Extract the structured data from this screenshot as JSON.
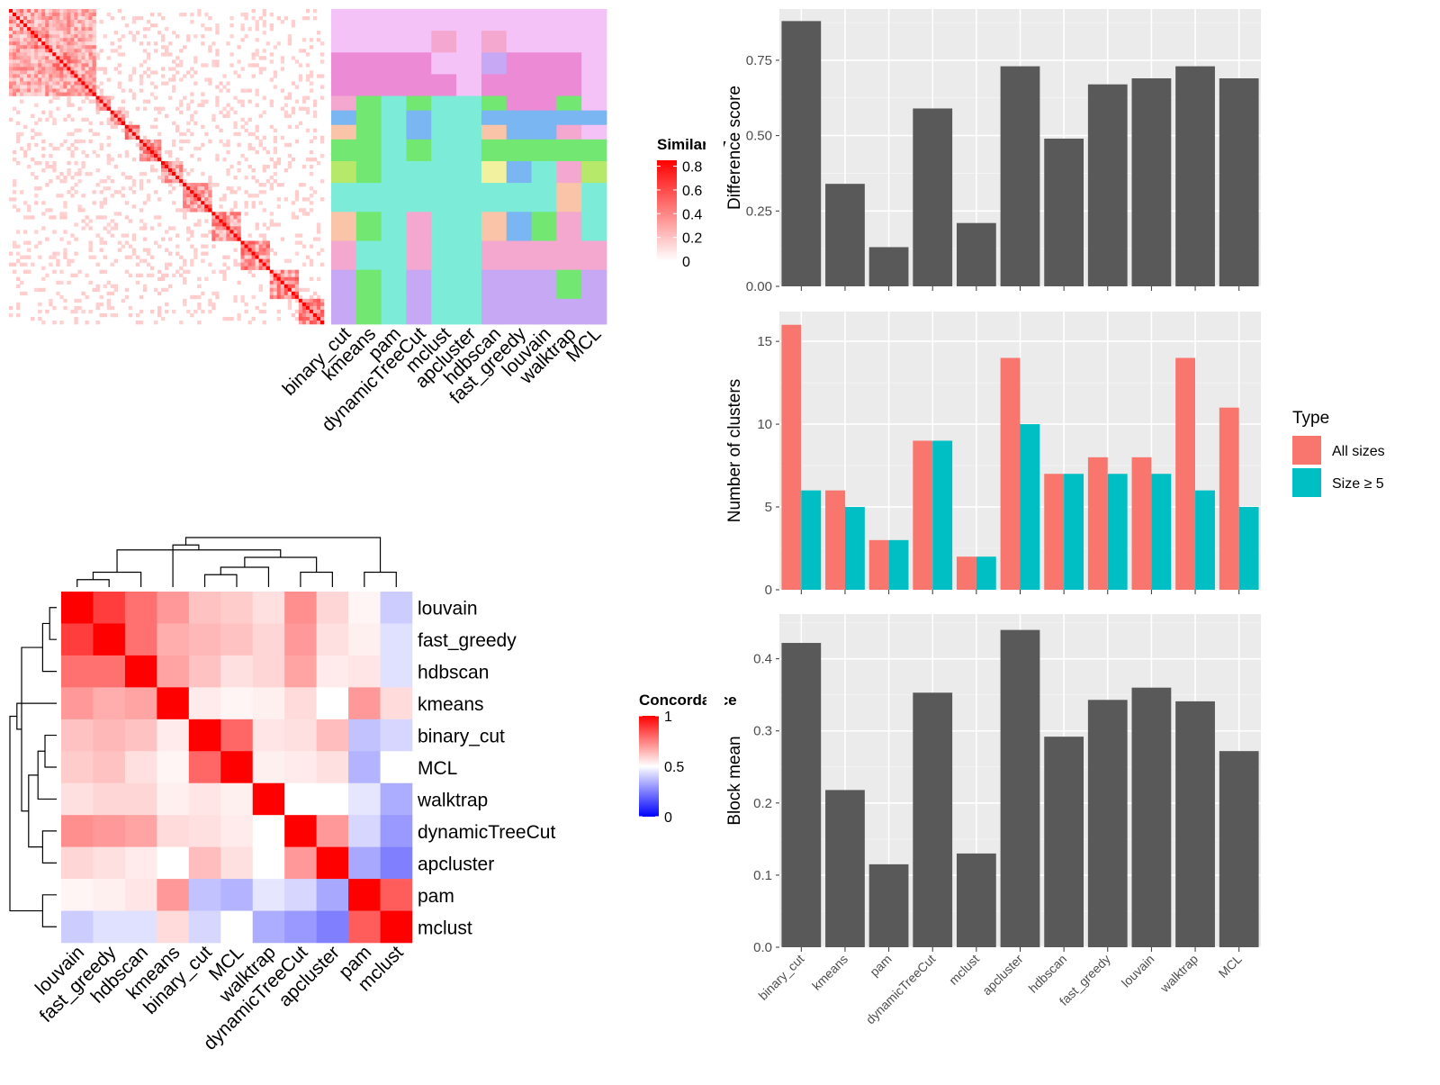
{
  "chart_data": [
    {
      "type": "heatmap",
      "panel": "similarity-heatmap",
      "legend_title": "Similarity",
      "legend_ticks": [
        "0.8",
        "0.6",
        "0.4",
        "0.2",
        "0"
      ],
      "legend_range": [
        0,
        0.85
      ],
      "methods": [
        "binary_cut",
        "kmeans",
        "pam",
        "dynamicTreeCut",
        "mclust",
        "apcluster",
        "hdbscan",
        "fast_greedy",
        "louvain",
        "walktrap",
        "MCL"
      ],
      "n_terms": 87,
      "blocks": [
        [
          0,
          6
        ],
        [
          6,
          12
        ],
        [
          12,
          18
        ],
        [
          18,
          24
        ],
        [
          24,
          28
        ],
        [
          28,
          32
        ],
        [
          32,
          36
        ],
        [
          36,
          42
        ],
        [
          42,
          48
        ],
        [
          48,
          56
        ],
        [
          56,
          64
        ],
        [
          64,
          72
        ],
        [
          72,
          80
        ],
        [
          80,
          87
        ]
      ],
      "seg_colors": [
        "#f4c2f7",
        "#ec8ad6",
        "#72e872",
        "#79b6f2",
        "#7cecd8",
        "#f4a8cf",
        "#c7a8f5",
        "#fac4a8",
        "#f1f19f",
        "#b6e86a"
      ],
      "assignments": [
        [
          0,
          0,
          0,
          0,
          0,
          0,
          0,
          0,
          0,
          0,
          0
        ],
        [
          0,
          0,
          0,
          0,
          5,
          0,
          5,
          0,
          0,
          0,
          0
        ],
        [
          1,
          1,
          1,
          1,
          0,
          0,
          6,
          1,
          1,
          1,
          0
        ],
        [
          1,
          1,
          1,
          1,
          1,
          0,
          1,
          1,
          1,
          1,
          0
        ],
        [
          5,
          2,
          4,
          2,
          4,
          4,
          2,
          1,
          1,
          2,
          0
        ],
        [
          3,
          2,
          4,
          3,
          4,
          4,
          3,
          3,
          3,
          3,
          3
        ],
        [
          7,
          2,
          4,
          3,
          4,
          4,
          7,
          3,
          3,
          5,
          0
        ],
        [
          2,
          2,
          4,
          2,
          4,
          4,
          2,
          2,
          2,
          2,
          2
        ],
        [
          9,
          2,
          4,
          4,
          4,
          4,
          8,
          3,
          4,
          5,
          9
        ],
        [
          4,
          4,
          4,
          4,
          4,
          4,
          4,
          4,
          4,
          7,
          4
        ],
        [
          7,
          2,
          4,
          5,
          4,
          4,
          7,
          3,
          2,
          5,
          4
        ],
        [
          5,
          4,
          4,
          5,
          4,
          4,
          5,
          5,
          5,
          5,
          5
        ],
        [
          6,
          2,
          4,
          6,
          4,
          4,
          6,
          6,
          6,
          2,
          6
        ],
        [
          6,
          2,
          4,
          6,
          4,
          4,
          6,
          6,
          6,
          6,
          6
        ]
      ]
    },
    {
      "type": "heatmap",
      "panel": "concordance-heatmap",
      "legend_title": "Concordance",
      "legend_ticks": [
        "1",
        "0.5",
        "0"
      ],
      "legend_range": [
        0,
        1
      ],
      "labels": [
        "louvain",
        "fast_greedy",
        "hdbscan",
        "kmeans",
        "binary_cut",
        "MCL",
        "walktrap",
        "dynamicTreeCut",
        "apcluster",
        "pam",
        "mclust"
      ],
      "values": [
        [
          1.0,
          0.88,
          0.78,
          0.7,
          0.62,
          0.6,
          0.56,
          0.72,
          0.58,
          0.52,
          0.4
        ],
        [
          0.88,
          1.0,
          0.78,
          0.66,
          0.64,
          0.62,
          0.58,
          0.7,
          0.56,
          0.53,
          0.44
        ],
        [
          0.78,
          0.78,
          1.0,
          0.68,
          0.62,
          0.56,
          0.58,
          0.68,
          0.54,
          0.55,
          0.44
        ],
        [
          0.7,
          0.66,
          0.68,
          1.0,
          0.54,
          0.52,
          0.53,
          0.57,
          0.5,
          0.7,
          0.57
        ],
        [
          0.62,
          0.64,
          0.62,
          0.54,
          1.0,
          0.8,
          0.55,
          0.56,
          0.63,
          0.38,
          0.42
        ],
        [
          0.6,
          0.62,
          0.56,
          0.52,
          0.8,
          1.0,
          0.53,
          0.54,
          0.56,
          0.35,
          0.5
        ],
        [
          0.56,
          0.58,
          0.58,
          0.53,
          0.55,
          0.53,
          1.0,
          0.5,
          0.5,
          0.45,
          0.34
        ],
        [
          0.72,
          0.7,
          0.68,
          0.57,
          0.56,
          0.54,
          0.5,
          1.0,
          0.7,
          0.42,
          0.3
        ],
        [
          0.58,
          0.56,
          0.54,
          0.5,
          0.63,
          0.56,
          0.5,
          0.7,
          1.0,
          0.33,
          0.25
        ],
        [
          0.52,
          0.53,
          0.55,
          0.7,
          0.38,
          0.35,
          0.45,
          0.42,
          0.33,
          1.0,
          0.82
        ],
        [
          0.4,
          0.44,
          0.44,
          0.57,
          0.42,
          0.5,
          0.34,
          0.3,
          0.25,
          0.82,
          1.0
        ]
      ]
    },
    {
      "type": "bar",
      "panel": "difference-score",
      "categories": [
        "binary_cut",
        "kmeans",
        "pam",
        "dynamicTreeCut",
        "mclust",
        "apcluster",
        "hdbscan",
        "fast_greedy",
        "louvain",
        "walktrap",
        "MCL"
      ],
      "values": [
        0.88,
        0.34,
        0.13,
        0.59,
        0.21,
        0.73,
        0.49,
        0.67,
        0.69,
        0.73,
        0.69
      ],
      "ylabel": "Difference score",
      "ylim": [
        0,
        0.92
      ],
      "yticks": [
        0,
        0.25,
        0.5,
        0.75
      ],
      "ytick_labels": [
        "0.00",
        "0.25",
        "0.50",
        "0.75"
      ],
      "grid": true
    },
    {
      "type": "bar",
      "panel": "number-of-clusters",
      "categories": [
        "binary_cut",
        "kmeans",
        "pam",
        "dynamicTreeCut",
        "mclust",
        "apcluster",
        "hdbscan",
        "fast_greedy",
        "louvain",
        "walktrap",
        "MCL"
      ],
      "series": [
        {
          "name": "All sizes",
          "values": [
            16,
            6,
            3,
            9,
            2,
            14,
            7,
            8,
            8,
            14,
            11
          ]
        },
        {
          "name": "Size ≥ 5",
          "values": [
            6,
            5,
            3,
            9,
            2,
            10,
            7,
            7,
            7,
            6,
            5
          ]
        }
      ],
      "ylabel": "Number of clusters",
      "ylim": [
        0,
        16.8
      ],
      "yticks": [
        0,
        5,
        10,
        15
      ],
      "ytick_labels": [
        "0",
        "5",
        "10",
        "15"
      ],
      "legend_title": "Type",
      "legend_position": "right",
      "grid": true
    },
    {
      "type": "bar",
      "panel": "block-mean",
      "categories": [
        "binary_cut",
        "kmeans",
        "pam",
        "dynamicTreeCut",
        "mclust",
        "apcluster",
        "hdbscan",
        "fast_greedy",
        "louvain",
        "walktrap",
        "MCL"
      ],
      "values": [
        0.422,
        0.218,
        0.115,
        0.353,
        0.13,
        0.44,
        0.292,
        0.343,
        0.36,
        0.341,
        0.272
      ],
      "ylabel": "Block mean",
      "ylim": [
        0,
        0.462
      ],
      "yticks": [
        0,
        0.1,
        0.2,
        0.3,
        0.4
      ],
      "ytick_labels": [
        "0.0",
        "0.1",
        "0.2",
        "0.3",
        "0.4"
      ],
      "grid": true
    }
  ],
  "colors": {
    "bar_dark": "#595959",
    "panel_bg": "#ebebeb",
    "all_sizes": "#F8766D",
    "size_ge5": "#00BFC4",
    "hot": "#ff0000",
    "cold": "#0000ff"
  }
}
